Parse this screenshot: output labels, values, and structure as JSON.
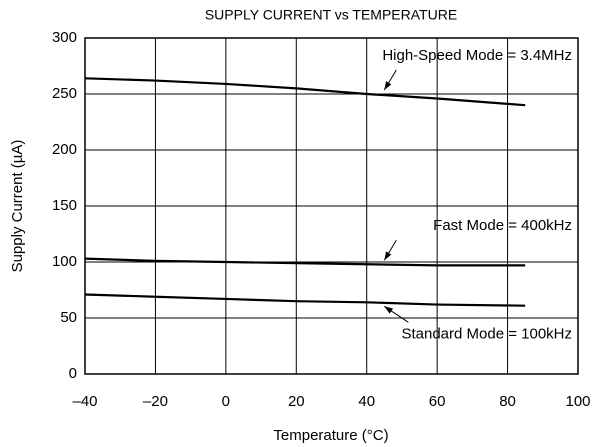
{
  "chart_data": {
    "type": "line",
    "title": "SUPPLY CURRENT vs TEMPERATURE",
    "xlabel": "Temperature (°C)",
    "ylabel": "Supply Current (µA)",
    "x": [
      -40,
      -20,
      0,
      20,
      40,
      60,
      85
    ],
    "series": [
      {
        "name": "High-Speed Mode = 3.4MHz",
        "color": "#000000",
        "values": [
          264,
          262,
          259,
          255,
          250,
          246,
          240
        ]
      },
      {
        "name": "Fast Mode = 400kHz",
        "color": "#000000",
        "values": [
          103,
          101,
          100,
          99,
          98,
          97,
          97
        ]
      },
      {
        "name": "Standard Mode = 100kHz",
        "color": "#000000",
        "values": [
          71,
          69,
          67,
          65,
          64,
          62,
          61
        ]
      }
    ],
    "xlim": [
      -40,
      100
    ],
    "xticks": [
      {
        "value": -40,
        "label": "–40"
      },
      {
        "value": -20,
        "label": "–20"
      },
      0,
      20,
      40,
      60,
      80,
      100
    ],
    "ylim": [
      0,
      300
    ],
    "yticks": [
      0,
      50,
      100,
      150,
      200,
      250,
      300
    ],
    "grid": true
  }
}
